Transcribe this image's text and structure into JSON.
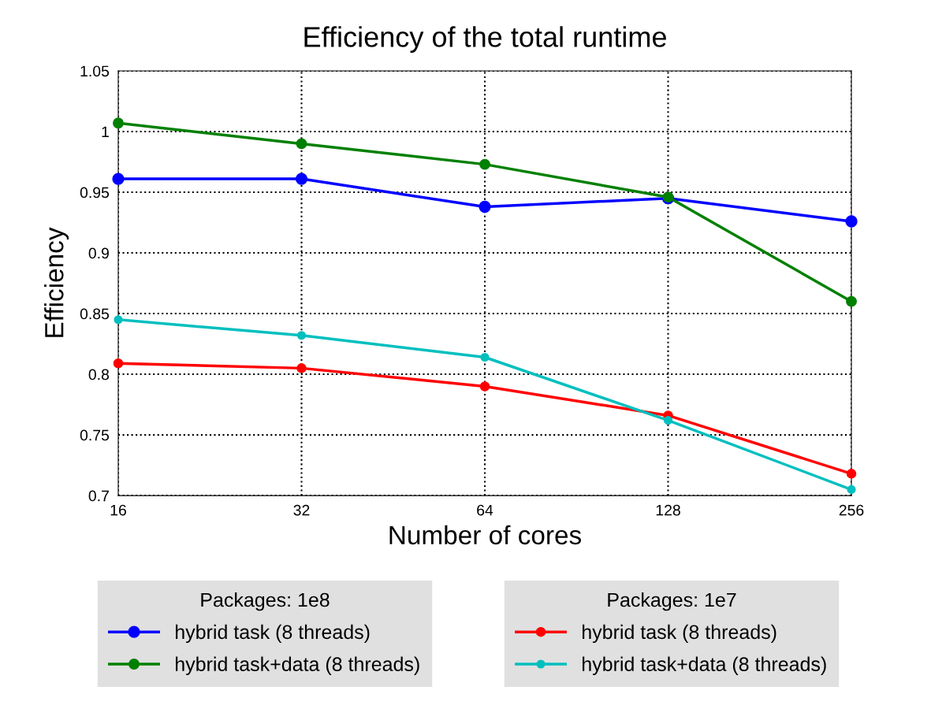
{
  "chart_data": {
    "type": "line",
    "title": "Efficiency of the total runtime",
    "xlabel": "Number of cores",
    "ylabel": "Efficiency",
    "x": [
      16,
      32,
      64,
      128,
      256
    ],
    "log": "x",
    "xlim": [
      16,
      256
    ],
    "xticks": [
      16,
      32,
      64,
      128,
      256
    ],
    "ylim": [
      0.7,
      1.05
    ],
    "yticks": [
      0.7,
      0.75,
      0.8,
      0.85,
      0.9,
      0.95,
      1,
      1.05
    ],
    "grid": true,
    "marker": "circle",
    "line_style": "solid",
    "legend": "bottom",
    "legend_title": [
      "Packages: 1e8",
      "Packages: 1e7"
    ],
    "series": [
      {
        "name": "hybrid task (8 threads)",
        "color": "#0000ff",
        "values": [
          0.961,
          0.961,
          0.938,
          0.945,
          0.926
        ]
      },
      {
        "name": "hybrid task+data (8 threads)",
        "color": "#008000",
        "values": [
          1.007,
          0.99,
          0.973,
          0.946,
          0.86
        ]
      },
      {
        "name": "hybrid task (8 threads)",
        "color": "#ff0000",
        "values": [
          0.809,
          0.805,
          0.79,
          0.766,
          0.718
        ]
      },
      {
        "name": "hybrid task+data (8 threads)",
        "color": "#00bfbf",
        "values": [
          0.845,
          0.832,
          0.814,
          0.762,
          0.705
        ]
      }
    ]
  }
}
